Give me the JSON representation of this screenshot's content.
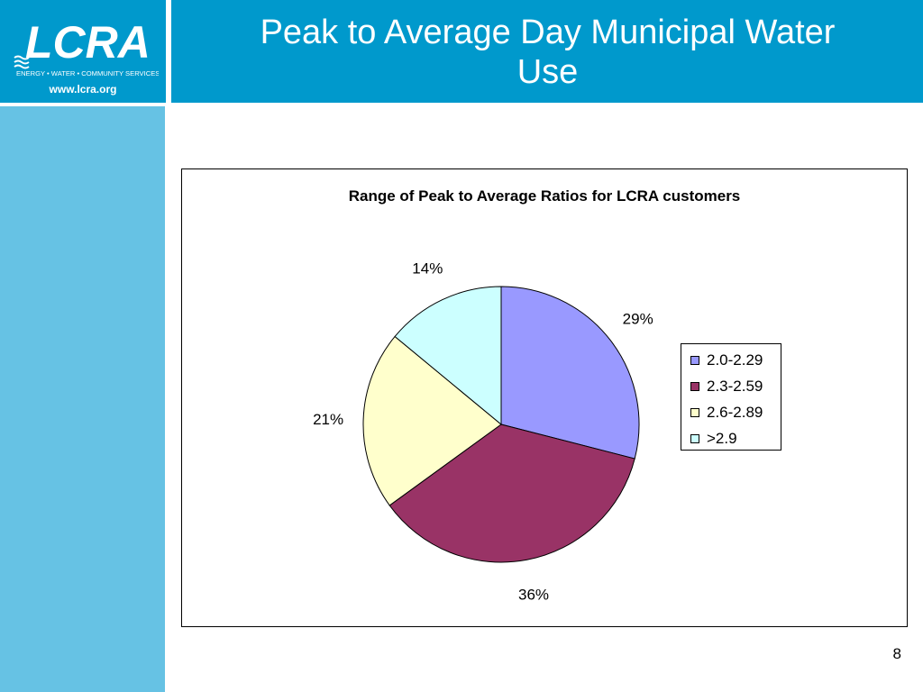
{
  "header": {
    "logo_text": "LCRA",
    "logo_tagline": "ENERGY • WATER • COMMUNITY SERVICES",
    "url": "www.lcra.org",
    "title_line1": "Peak to Average Day Municipal Water",
    "title_line2": "Use"
  },
  "colors": {
    "header_blue": "#0099cc",
    "sidebar_blue": "#66c2e4"
  },
  "chart_data": {
    "type": "pie",
    "title": "Range of Peak to Average Ratios for LCRA customers",
    "categories": [
      "2.0-2.29",
      "2.3-2.59",
      "2.6-2.89",
      ">2.9"
    ],
    "values": [
      29,
      36,
      21,
      14
    ],
    "labels": [
      "29%",
      "36%",
      "21%",
      "14%"
    ],
    "colors": [
      "#9999ff",
      "#993366",
      "#ffffcc",
      "#ccffff"
    ],
    "legend": "right",
    "start": "12 o'clock",
    "direction": "clockwise"
  },
  "page_number": "8"
}
